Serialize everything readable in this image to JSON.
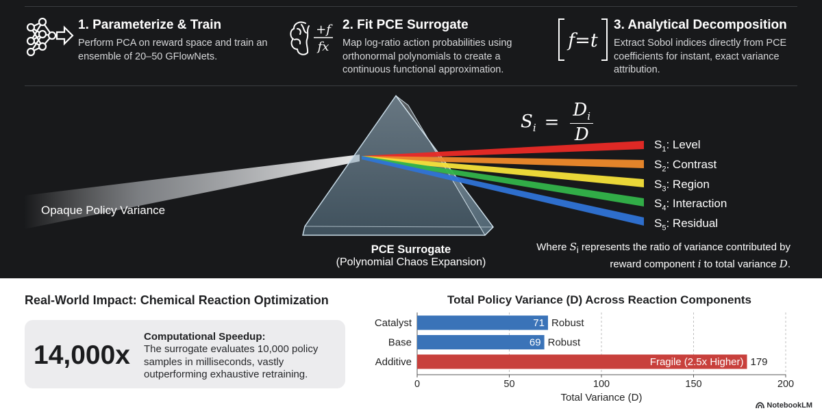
{
  "steps": [
    {
      "title": "1. Parameterize & Train",
      "body": "Perform PCA on reward space and train an ensemble of 20–50 GFlowNets.",
      "icon": "neural-network-icon"
    },
    {
      "title": "2. Fit PCE Surrogate",
      "body": "Map log-ratio action probabilities using orthonormal polynomials to create a continuous functional approximation.",
      "icon": "brain-formula-icon",
      "icon_text_top": "+f",
      "icon_text_bottom": "fx"
    },
    {
      "title": "3. Analytical Decomposition",
      "body": "Extract Sobol indices directly from PCE coefficients for instant, exact variance attribution.",
      "icon": "equation-bracket-icon",
      "icon_text": "f=t"
    }
  ],
  "diagram": {
    "formula": {
      "lhs": "S",
      "lhs_sub": "i",
      "num": "D",
      "num_sub": "i",
      "den": "D"
    },
    "input_label": "Opaque Policy Variance",
    "prism_title": "PCE Surrogate",
    "prism_subtitle": "(Polynomial Chaos Expansion)",
    "rays": [
      {
        "s": "S",
        "sub": "1",
        "label": ": Level",
        "color": "#ea2a26"
      },
      {
        "s": "S",
        "sub": "2",
        "label": ": Contrast",
        "color": "#ef8a2b"
      },
      {
        "s": "S",
        "sub": "3",
        "label": ": Region",
        "color": "#f5e13a"
      },
      {
        "s": "S",
        "sub": "4",
        "label": ": Interaction",
        "color": "#33b44a"
      },
      {
        "s": "S",
        "sub": "5",
        "label": ": Residual",
        "color": "#2f73d6"
      }
    ],
    "note": {
      "p1": "Where ",
      "s": "S",
      "s_sub": "i",
      "p2": " represents the ratio of variance contributed by reward component ",
      "i": "i",
      "p3": " to total variance ",
      "d": "D",
      "p4": "."
    }
  },
  "impact": {
    "title": "Real-World Impact: Chemical Reaction Optimization",
    "big_number": "14,000x",
    "heading": "Computational Speedup:",
    "body": "The surrogate evaluates 10,000 policy samples in milliseconds, vastly outperforming exhaustive retraining."
  },
  "chart_data": {
    "type": "bar",
    "orientation": "horizontal",
    "title": "Total Policy Variance (D) Across Reaction Components",
    "xlabel": "Total Variance (D)",
    "ylabel": "",
    "xlim": [
      0,
      200
    ],
    "xticks": [
      0,
      50,
      100,
      150,
      200
    ],
    "grid": "vertical-dashed",
    "categories": [
      "Catalyst",
      "Base",
      "Additive"
    ],
    "values": [
      71,
      69,
      179
    ],
    "value_labels_inside": [
      "71",
      "69",
      "Fragile (2.5x Higher)"
    ],
    "value_labels_outside": [
      "Robust",
      "Robust",
      "179"
    ],
    "colors": [
      "#3a73b8",
      "#3a73b8",
      "#c8403c"
    ]
  },
  "brand": {
    "name": "NotebookLM"
  }
}
